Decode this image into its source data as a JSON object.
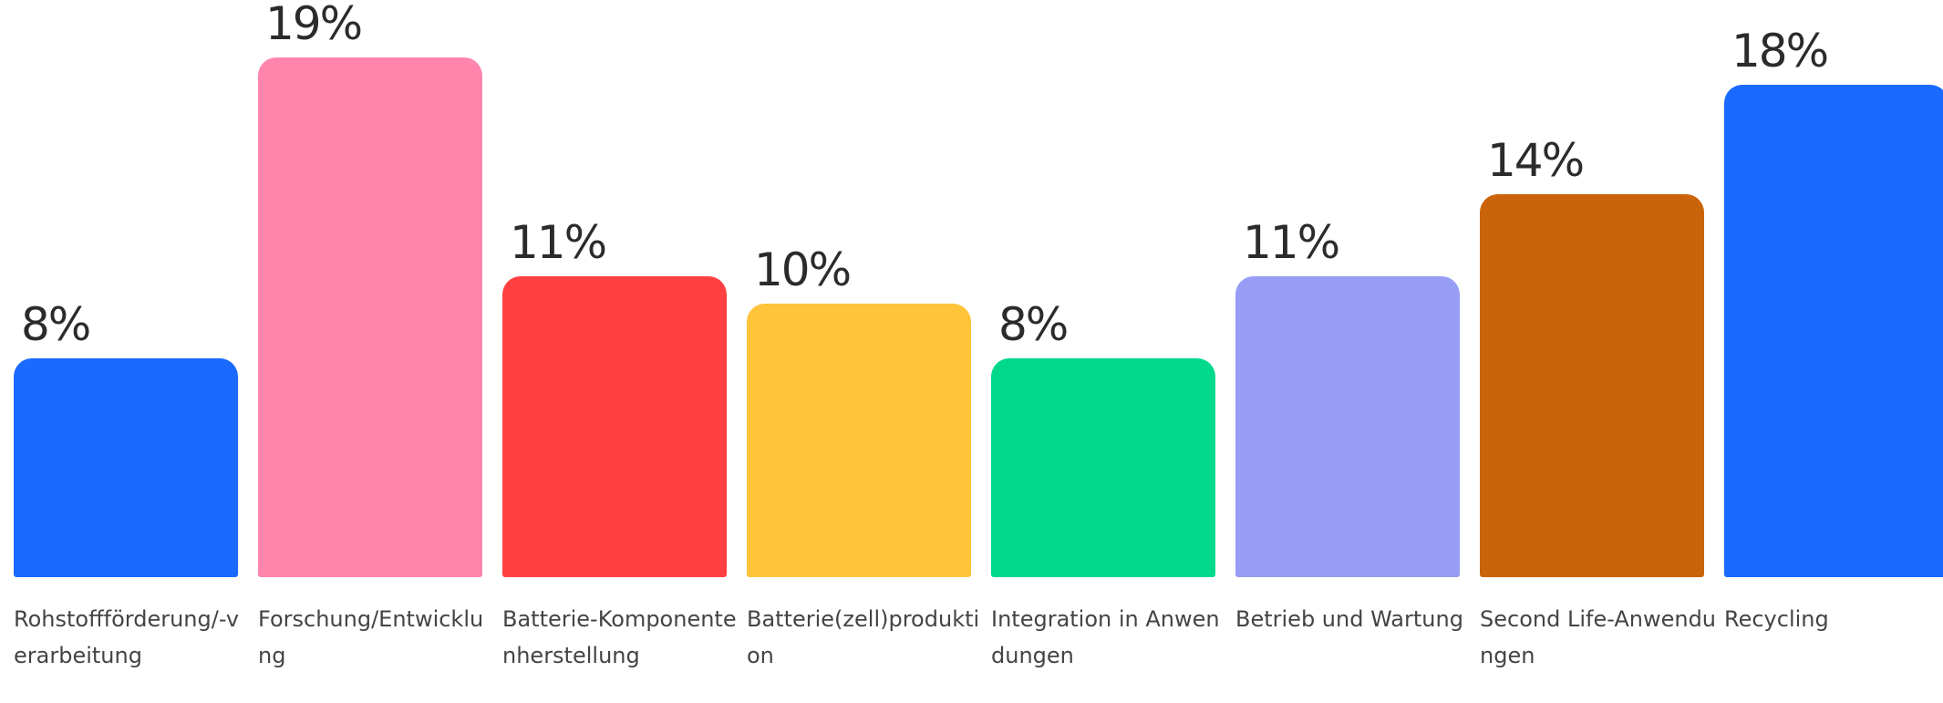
{
  "chart_data": {
    "type": "bar",
    "categories": [
      "Rohstoffförderung/-verarbeitung",
      "Forschung/Entwicklung",
      "Batterie-Komponentenherstellung",
      "Batterie(zell)produktion",
      "Integration in Anwendungen",
      "Betrieb und Wartung",
      "Second Life-Anwendungen",
      "Recycling"
    ],
    "values": [
      8,
      19,
      11,
      10,
      8,
      11,
      14,
      18
    ],
    "value_labels": [
      "8%",
      "19%",
      "11%",
      "10%",
      "8%",
      "11%",
      "14%",
      "18%"
    ],
    "colors": [
      "#1a6aff",
      "#ff85ad",
      "#ff4040",
      "#ffc43a",
      "#00d98c",
      "#979cf5",
      "#c9640a",
      "#1a6aff"
    ]
  }
}
